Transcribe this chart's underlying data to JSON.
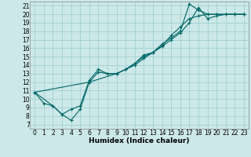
{
  "xlabel": "Humidex (Indice chaleur)",
  "bg_color": "#cce8e8",
  "grid_color": "#99cccc",
  "line_color": "#006666",
  "xlim": [
    -0.5,
    23.5
  ],
  "ylim": [
    6.5,
    21.5
  ],
  "xticks": [
    0,
    1,
    2,
    3,
    4,
    5,
    6,
    7,
    8,
    9,
    10,
    11,
    12,
    13,
    14,
    15,
    16,
    17,
    18,
    19,
    20,
    21,
    22,
    23
  ],
  "yticks": [
    7,
    8,
    9,
    10,
    11,
    12,
    13,
    14,
    15,
    16,
    17,
    18,
    19,
    20,
    21
  ],
  "line1_x": [
    0,
    1,
    2,
    3,
    4,
    5,
    6,
    7,
    8,
    9,
    10,
    11,
    12,
    13,
    14,
    15,
    16,
    17,
    18,
    19,
    20,
    21,
    22,
    23
  ],
  "line1_y": [
    10.8,
    9.5,
    9.2,
    8.2,
    7.5,
    8.8,
    12.0,
    13.2,
    13.0,
    13.0,
    13.5,
    14.2,
    15.0,
    15.5,
    16.3,
    17.5,
    18.5,
    19.5,
    19.8,
    20.0,
    20.0,
    20.0,
    20.0,
    20.0
  ],
  "line2_x": [
    0,
    2,
    3,
    4,
    5,
    6,
    7,
    8,
    9,
    10,
    11,
    12,
    13,
    14,
    15,
    16,
    17,
    18,
    19,
    20,
    21,
    22,
    23
  ],
  "line2_y": [
    10.8,
    9.2,
    8.2,
    8.8,
    9.2,
    12.2,
    13.5,
    13.0,
    13.0,
    13.5,
    14.2,
    15.2,
    15.5,
    16.5,
    17.2,
    18.0,
    21.2,
    20.5,
    20.0,
    20.0,
    20.0,
    20.0,
    20.0
  ],
  "line3_x": [
    0,
    6,
    9,
    10,
    11,
    12,
    13,
    14,
    15,
    16,
    17,
    18,
    19,
    20,
    21,
    22,
    23
  ],
  "line3_y": [
    10.8,
    12.0,
    13.0,
    13.5,
    14.0,
    14.8,
    15.5,
    16.2,
    17.0,
    17.8,
    19.0,
    20.8,
    19.5,
    19.8,
    20.0,
    20.0,
    20.0
  ],
  "tick_fontsize": 5.5,
  "xlabel_fontsize": 6.5
}
